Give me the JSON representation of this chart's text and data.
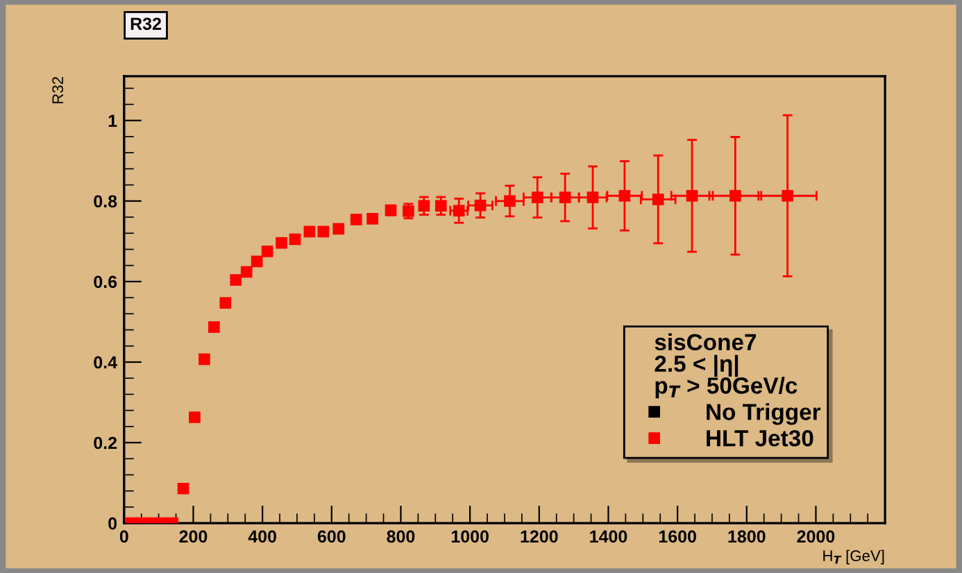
{
  "chart_data": {
    "type": "scatter",
    "title": "R32",
    "xlabel": "H$_{T}$ [GeV]",
    "ylabel": "R32",
    "legend_title": "sisCone7\n2.5 < |η|\np$_{T}$ > 50GeV/c",
    "x": [
      20,
      50,
      80,
      110,
      140,
      171,
      204,
      232,
      260,
      293,
      323,
      354,
      384,
      414,
      455,
      494,
      536,
      576,
      620,
      671,
      718,
      771,
      822,
      867,
      916,
      968,
      1030,
      1115,
      1195,
      1275,
      1355,
      1447,
      1544,
      1642,
      1767,
      1918
    ],
    "series": [
      {
        "name": "No Trigger",
        "color": "#000000",
        "values": [
          null,
          null,
          null,
          null,
          null,
          null,
          null,
          null,
          null,
          null,
          null,
          null,
          null,
          null,
          null,
          null,
          null,
          null,
          null,
          null,
          null,
          null,
          null,
          null,
          null,
          null,
          null,
          null,
          null,
          null,
          null,
          null,
          null,
          null,
          null,
          null
        ]
      },
      {
        "name": "HLT Jet30",
        "color": "#ff0000",
        "values": [
          0,
          0,
          0,
          0,
          0,
          0.086,
          0.263,
          0.407,
          0.487,
          0.547,
          0.604,
          0.624,
          0.65,
          0.675,
          0.696,
          0.705,
          0.724,
          0.724,
          0.731,
          0.754,
          0.756,
          0.777,
          0.775,
          0.788,
          0.788,
          0.776,
          0.789,
          0.8,
          0.809,
          0.809,
          0.809,
          0.813,
          0.804,
          0.813,
          0.813,
          0.813
        ],
        "errors": [
          null,
          null,
          null,
          null,
          null,
          null,
          null,
          null,
          null,
          null,
          null,
          null,
          null,
          null,
          null,
          null,
          null,
          null,
          null,
          null,
          null,
          0.012,
          0.018,
          0.022,
          0.022,
          0.03,
          0.03,
          0.038,
          0.05,
          0.059,
          0.077,
          0.086,
          0.109,
          0.139,
          0.146,
          0.2
        ],
        "xerrors": [
          null,
          null,
          null,
          null,
          null,
          null,
          null,
          null,
          null,
          null,
          null,
          null,
          null,
          null,
          null,
          null,
          null,
          null,
          null,
          null,
          null,
          null,
          null,
          null,
          null,
          25,
          35,
          40,
          40,
          40,
          40,
          50,
          50,
          60,
          75,
          84
        ]
      }
    ],
    "xlim": [
      0,
      2200
    ],
    "ylim": [
      0,
      1.11
    ],
    "xticks": [
      0,
      200,
      400,
      600,
      800,
      1000,
      1200,
      1400,
      1600,
      1800,
      2000
    ],
    "yticks": [
      0,
      0.2,
      0.4,
      0.6,
      0.8,
      1
    ],
    "marker": "square",
    "legend": "bottom right",
    "grid": false
  }
}
